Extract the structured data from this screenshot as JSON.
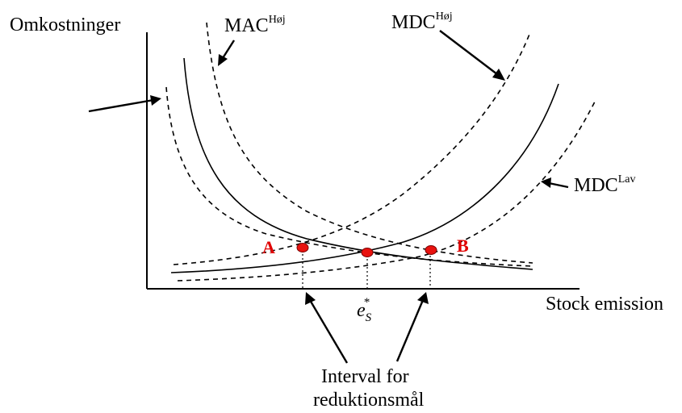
{
  "labels": {
    "y_axis": "Omkostninger",
    "x_axis": "Stock emission",
    "mac_high_base": "MAC",
    "mac_high_sup": "Høj",
    "mdc_high_base": "MDC",
    "mdc_high_sup": "Høj",
    "mdc_low_base": "MDC",
    "mdc_low_sup": "Lav",
    "e_star_base": "e",
    "e_star_sub": "S",
    "e_star_sup": "*",
    "interval_line1": "Interval for",
    "interval_line2": "reduktionsmål",
    "point_a": "A",
    "point_b": "B"
  },
  "colors": {
    "point_fill": "#e8120f",
    "point_label": "#e00000",
    "line": "#000000"
  }
}
